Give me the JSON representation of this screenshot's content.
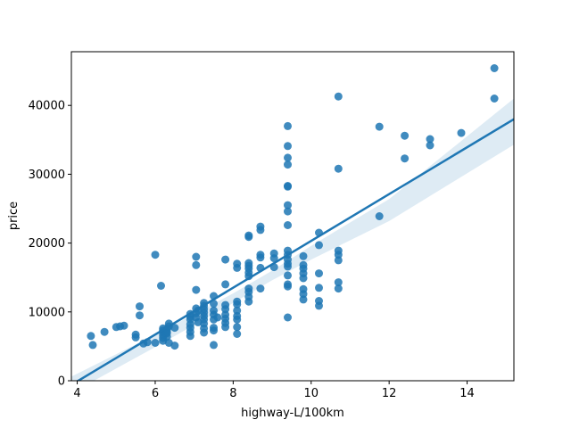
{
  "chart_data": {
    "type": "scatter",
    "xlabel": "highway-L/100km",
    "ylabel": "price",
    "xlim": [
      3.85,
      15.2
    ],
    "ylim": [
      0,
      47800
    ],
    "x_ticks": [
      4,
      6,
      8,
      10,
      12,
      14
    ],
    "y_ticks": [
      0,
      10000,
      20000,
      30000,
      40000
    ],
    "grid": false,
    "colors": {
      "points": "#1f77b4",
      "line": "#1f77b4",
      "band": "#1f77b4"
    },
    "regression": {
      "x": [
        3.85,
        15.2
      ],
      "y": [
        -600,
        38000
      ]
    },
    "confidence_band": {
      "x": [
        3.85,
        6.0,
        8.0,
        9.0,
        10.0,
        12.0,
        15.2
      ],
      "lower": [
        -1800,
        4900,
        11300,
        14600,
        17600,
        23200,
        34300
      ],
      "upper": [
        600,
        6700,
        12700,
        16000,
        19600,
        26400,
        41000
      ]
    },
    "points": [
      {
        "x": 4.35,
        "y": 6500
      },
      {
        "x": 4.4,
        "y": 5200
      },
      {
        "x": 4.7,
        "y": 7100
      },
      {
        "x": 5.0,
        "y": 7800
      },
      {
        "x": 5.1,
        "y": 7900
      },
      {
        "x": 5.2,
        "y": 8000
      },
      {
        "x": 5.5,
        "y": 6300
      },
      {
        "x": 5.5,
        "y": 6700
      },
      {
        "x": 5.6,
        "y": 9500
      },
      {
        "x": 5.6,
        "y": 10800
      },
      {
        "x": 5.7,
        "y": 5400
      },
      {
        "x": 5.8,
        "y": 5600
      },
      {
        "x": 6.0,
        "y": 5500
      },
      {
        "x": 6.0,
        "y": 18300
      },
      {
        "x": 6.15,
        "y": 13800
      },
      {
        "x": 6.2,
        "y": 5800
      },
      {
        "x": 6.2,
        "y": 6200
      },
      {
        "x": 6.2,
        "y": 6600
      },
      {
        "x": 6.2,
        "y": 7000
      },
      {
        "x": 6.2,
        "y": 7300
      },
      {
        "x": 6.2,
        "y": 7600
      },
      {
        "x": 6.3,
        "y": 6400
      },
      {
        "x": 6.3,
        "y": 6900
      },
      {
        "x": 6.3,
        "y": 7100
      },
      {
        "x": 6.3,
        "y": 7500
      },
      {
        "x": 6.35,
        "y": 5500
      },
      {
        "x": 6.35,
        "y": 7900
      },
      {
        "x": 6.35,
        "y": 8300
      },
      {
        "x": 6.5,
        "y": 5100
      },
      {
        "x": 6.5,
        "y": 7700
      },
      {
        "x": 6.9,
        "y": 6500
      },
      {
        "x": 6.9,
        "y": 7100
      },
      {
        "x": 6.9,
        "y": 7700
      },
      {
        "x": 6.9,
        "y": 8200
      },
      {
        "x": 6.9,
        "y": 8900
      },
      {
        "x": 6.9,
        "y": 9300
      },
      {
        "x": 6.9,
        "y": 9700
      },
      {
        "x": 7.05,
        "y": 9200
      },
      {
        "x": 7.05,
        "y": 9800
      },
      {
        "x": 7.05,
        "y": 10500
      },
      {
        "x": 7.05,
        "y": 13200
      },
      {
        "x": 7.05,
        "y": 16800
      },
      {
        "x": 7.05,
        "y": 18000
      },
      {
        "x": 7.1,
        "y": 8500
      },
      {
        "x": 7.1,
        "y": 10200
      },
      {
        "x": 7.25,
        "y": 7000
      },
      {
        "x": 7.25,
        "y": 7600
      },
      {
        "x": 7.25,
        "y": 8300
      },
      {
        "x": 7.25,
        "y": 8900
      },
      {
        "x": 7.25,
        "y": 9400
      },
      {
        "x": 7.25,
        "y": 9900
      },
      {
        "x": 7.25,
        "y": 10400
      },
      {
        "x": 7.25,
        "y": 10900
      },
      {
        "x": 7.25,
        "y": 11300
      },
      {
        "x": 7.5,
        "y": 5200
      },
      {
        "x": 7.5,
        "y": 7300
      },
      {
        "x": 7.5,
        "y": 7700
      },
      {
        "x": 7.5,
        "y": 8900
      },
      {
        "x": 7.5,
        "y": 9600
      },
      {
        "x": 7.5,
        "y": 10200
      },
      {
        "x": 7.5,
        "y": 11200
      },
      {
        "x": 7.5,
        "y": 12300
      },
      {
        "x": 7.6,
        "y": 9200
      },
      {
        "x": 7.8,
        "y": 7800
      },
      {
        "x": 7.8,
        "y": 8400
      },
      {
        "x": 7.8,
        "y": 9000
      },
      {
        "x": 7.8,
        "y": 9600
      },
      {
        "x": 7.8,
        "y": 10400
      },
      {
        "x": 7.8,
        "y": 11000
      },
      {
        "x": 7.8,
        "y": 14000
      },
      {
        "x": 7.8,
        "y": 17600
      },
      {
        "x": 8.1,
        "y": 6800
      },
      {
        "x": 8.1,
        "y": 7800
      },
      {
        "x": 8.1,
        "y": 8900
      },
      {
        "x": 8.1,
        "y": 9400
      },
      {
        "x": 8.1,
        "y": 10200
      },
      {
        "x": 8.1,
        "y": 11100
      },
      {
        "x": 8.1,
        "y": 11500
      },
      {
        "x": 8.1,
        "y": 16400
      },
      {
        "x": 8.1,
        "y": 17000
      },
      {
        "x": 8.4,
        "y": 11500
      },
      {
        "x": 8.4,
        "y": 12200
      },
      {
        "x": 8.4,
        "y": 12900
      },
      {
        "x": 8.4,
        "y": 13400
      },
      {
        "x": 8.4,
        "y": 15200
      },
      {
        "x": 8.4,
        "y": 15700
      },
      {
        "x": 8.4,
        "y": 16300
      },
      {
        "x": 8.4,
        "y": 16700
      },
      {
        "x": 8.4,
        "y": 17100
      },
      {
        "x": 8.4,
        "y": 20900
      },
      {
        "x": 8.4,
        "y": 21100
      },
      {
        "x": 8.7,
        "y": 13400
      },
      {
        "x": 8.7,
        "y": 16400
      },
      {
        "x": 8.7,
        "y": 17900
      },
      {
        "x": 8.7,
        "y": 18300
      },
      {
        "x": 8.7,
        "y": 21900
      },
      {
        "x": 8.7,
        "y": 22400
      },
      {
        "x": 9.05,
        "y": 16500
      },
      {
        "x": 9.05,
        "y": 17800
      },
      {
        "x": 9.05,
        "y": 18500
      },
      {
        "x": 9.4,
        "y": 9200
      },
      {
        "x": 9.4,
        "y": 13700
      },
      {
        "x": 9.4,
        "y": 14000
      },
      {
        "x": 9.4,
        "y": 15300
      },
      {
        "x": 9.4,
        "y": 16600
      },
      {
        "x": 9.4,
        "y": 17000
      },
      {
        "x": 9.4,
        "y": 17600
      },
      {
        "x": 9.4,
        "y": 18300
      },
      {
        "x": 9.4,
        "y": 18900
      },
      {
        "x": 9.4,
        "y": 22600
      },
      {
        "x": 9.4,
        "y": 24600
      },
      {
        "x": 9.4,
        "y": 25500
      },
      {
        "x": 9.4,
        "y": 28200
      },
      {
        "x": 9.4,
        "y": 28300
      },
      {
        "x": 9.4,
        "y": 31400
      },
      {
        "x": 9.4,
        "y": 32400
      },
      {
        "x": 9.4,
        "y": 34100
      },
      {
        "x": 9.4,
        "y": 37000
      },
      {
        "x": 9.8,
        "y": 11800
      },
      {
        "x": 9.8,
        "y": 12600
      },
      {
        "x": 9.8,
        "y": 13300
      },
      {
        "x": 9.8,
        "y": 14900
      },
      {
        "x": 9.8,
        "y": 15600
      },
      {
        "x": 9.8,
        "y": 16300
      },
      {
        "x": 9.8,
        "y": 16800
      },
      {
        "x": 9.8,
        "y": 18100
      },
      {
        "x": 10.2,
        "y": 10900
      },
      {
        "x": 10.2,
        "y": 11600
      },
      {
        "x": 10.2,
        "y": 13500
      },
      {
        "x": 10.2,
        "y": 15600
      },
      {
        "x": 10.2,
        "y": 19700
      },
      {
        "x": 10.2,
        "y": 21500
      },
      {
        "x": 10.7,
        "y": 13400
      },
      {
        "x": 10.7,
        "y": 14300
      },
      {
        "x": 10.7,
        "y": 17500
      },
      {
        "x": 10.7,
        "y": 18300
      },
      {
        "x": 10.7,
        "y": 18900
      },
      {
        "x": 10.7,
        "y": 30800
      },
      {
        "x": 10.7,
        "y": 41300
      },
      {
        "x": 11.75,
        "y": 23900
      },
      {
        "x": 11.75,
        "y": 36900
      },
      {
        "x": 12.4,
        "y": 32300
      },
      {
        "x": 12.4,
        "y": 35600
      },
      {
        "x": 13.05,
        "y": 34200
      },
      {
        "x": 13.05,
        "y": 35100
      },
      {
        "x": 13.85,
        "y": 36000
      },
      {
        "x": 14.7,
        "y": 41000
      },
      {
        "x": 14.7,
        "y": 45400
      }
    ]
  }
}
